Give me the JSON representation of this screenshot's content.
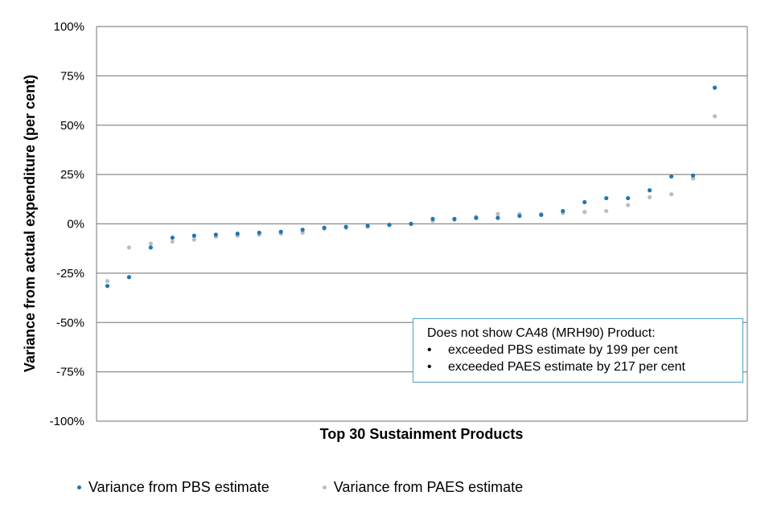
{
  "chart_data": {
    "type": "scatter",
    "xlabel": "Top 30 Sustainment Products",
    "ylabel": "Variance from actual expenditure (per cent)",
    "ylim": [
      -100,
      100
    ],
    "yticks": [
      100,
      75,
      50,
      25,
      0,
      -25,
      -50,
      -75,
      -100
    ],
    "ytick_labels": [
      "100%",
      "75%",
      "50%",
      "25%",
      "0%",
      "-25%",
      "-50%",
      "-75%",
      "-100%"
    ],
    "grid": true,
    "legend_position": "bottom",
    "x": [
      1,
      2,
      3,
      4,
      5,
      6,
      7,
      8,
      9,
      10,
      11,
      12,
      13,
      14,
      15,
      16,
      17,
      18,
      19,
      20,
      21,
      22,
      23,
      24,
      25,
      26,
      27,
      28,
      29,
      30
    ],
    "series": [
      {
        "name": "Variance from PBS estimate",
        "color": "#1f77b4",
        "values": [
          -31.5,
          -27,
          -12,
          -7,
          -6,
          -5.5,
          -5,
          -4.5,
          -4,
          -3,
          -2,
          -1.5,
          -1,
          -0.5,
          0,
          2.5,
          2.5,
          3,
          3,
          4,
          4.5,
          6.5,
          11,
          13,
          13,
          17,
          24,
          24.5,
          69,
          null
        ]
      },
      {
        "name": "Variance from PAES estimate",
        "color": "#bdbdbd",
        "values": [
          -29,
          -12,
          -10,
          -9,
          -8,
          -6.5,
          -6,
          -5.5,
          -5,
          -4.5,
          -2.5,
          -2,
          -1.5,
          -0.5,
          0,
          1.5,
          2,
          3.5,
          5,
          5,
          5,
          5.5,
          6,
          6.5,
          9.5,
          13.5,
          15,
          23,
          54.5,
          null
        ]
      }
    ]
  },
  "annotation": {
    "title": "Does not show CA48 (MRH90) Product:",
    "bullet": "•",
    "items": [
      "exceeded PBS estimate by 199 per cent",
      "exceeded PAES estimate by 217 per cent"
    ]
  }
}
